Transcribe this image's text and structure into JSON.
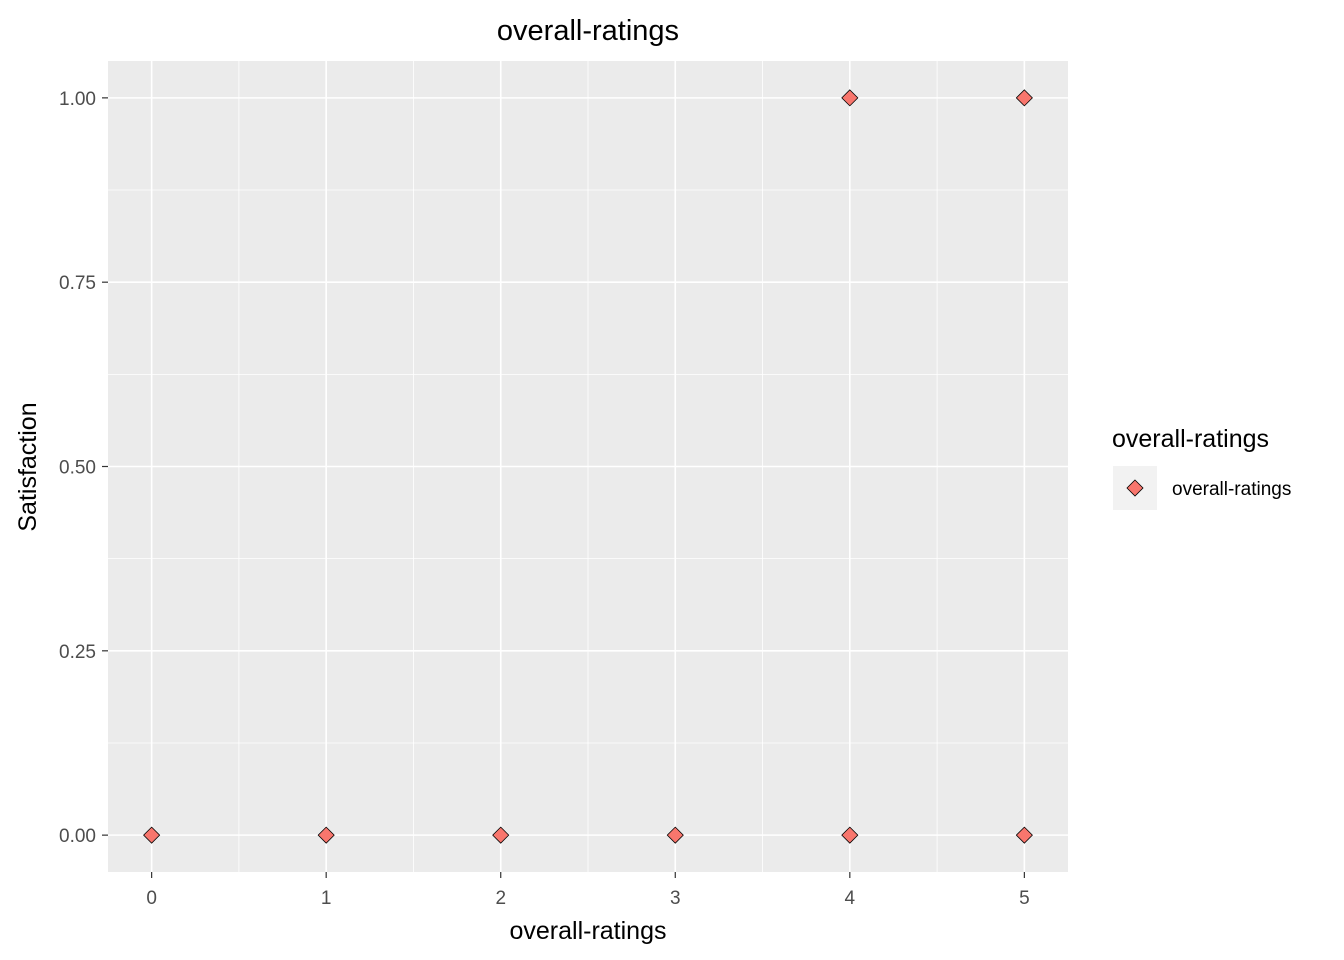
{
  "chart_data": {
    "type": "scatter",
    "title": "overall-ratings",
    "xlabel": "overall-ratings",
    "ylabel": "Satisfaction",
    "xlim": [
      -0.25,
      5.25
    ],
    "ylim": [
      -0.05,
      1.05
    ],
    "x_ticks": [
      "0",
      "1",
      "2",
      "3",
      "4",
      "5"
    ],
    "y_ticks": [
      "0.00",
      "0.25",
      "0.50",
      "0.75",
      "1.00"
    ],
    "grid": true,
    "legend": {
      "title": "overall-ratings",
      "position": "right",
      "entries": [
        "overall-ratings"
      ]
    },
    "colors": {
      "point_fill": "#F8766D",
      "point_stroke": "#000000",
      "panel_background": "#EBEBEB",
      "grid": "#FFFFFF"
    },
    "marker": "diamond",
    "series": [
      {
        "name": "overall-ratings",
        "points": [
          {
            "x": 0,
            "y": 0
          },
          {
            "x": 1,
            "y": 0
          },
          {
            "x": 2,
            "y": 0
          },
          {
            "x": 3,
            "y": 0
          },
          {
            "x": 4,
            "y": 0
          },
          {
            "x": 5,
            "y": 0
          },
          {
            "x": 4,
            "y": 1
          },
          {
            "x": 5,
            "y": 1
          }
        ]
      }
    ]
  }
}
